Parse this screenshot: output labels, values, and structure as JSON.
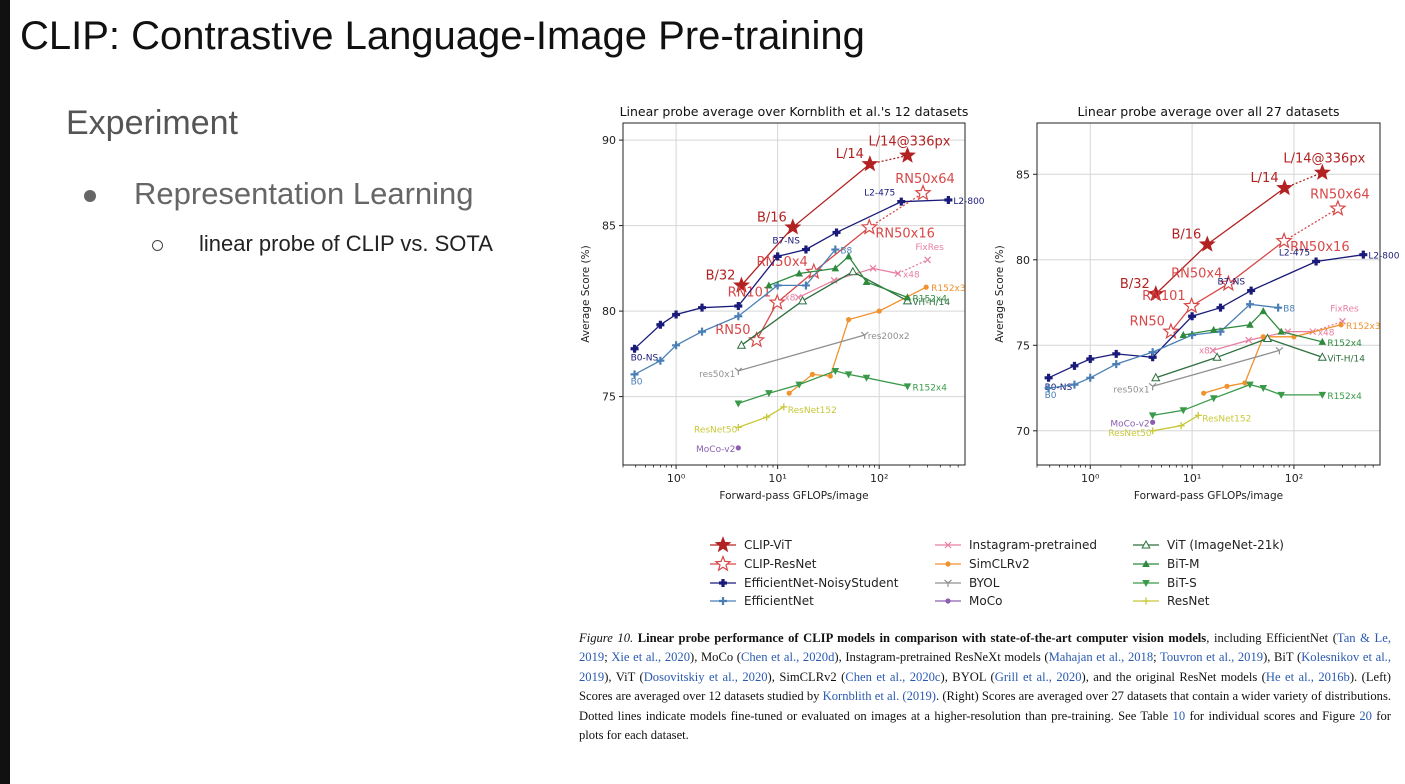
{
  "slide": {
    "title": "CLIP: Contrastive Language-Image Pre-training",
    "section": "Experiment",
    "bullet_1": "Representation Learning",
    "bullet_2": "linear probe of CLIP vs. SOTA"
  },
  "chart_data": [
    {
      "type": "line",
      "title": "Linear probe average over Kornblith et al.'s 12 datasets",
      "xlabel": "Forward-pass GFLOPs/image",
      "ylabel": "Average Score (%)",
      "xscale": "log",
      "xlim": [
        0.3,
        700
      ],
      "ylim": [
        71,
        91
      ],
      "xticks": [
        1,
        10,
        100
      ],
      "xticklabels": [
        "10⁰",
        "10¹",
        "10²"
      ],
      "yticks": [
        75,
        80,
        85,
        90
      ],
      "grid": true,
      "series": [
        {
          "name": "CLIP-ViT",
          "color": "#b22222",
          "marker": "star",
          "x": [
            4.4,
            14.1,
            81
          ],
          "y": [
            81.5,
            84.9,
            88.6
          ],
          "labels": [
            "B/32",
            "B/16",
            "L/14"
          ],
          "ft_x": [
            81,
            190
          ],
          "ft_y": [
            88.6,
            89.1
          ],
          "ft_label": "L/14@336px"
        },
        {
          "name": "CLIP-ResNet",
          "color": "#d84848",
          "marker": "star-open",
          "x": [
            6.2,
            9.9,
            22.7,
            80
          ],
          "y": [
            78.3,
            80.5,
            82.3,
            84.9
          ],
          "labels": [
            "RN50",
            "RN101",
            "RN50x4",
            "RN50x16"
          ],
          "ft_x": [
            80,
            270
          ],
          "ft_y": [
            84.9,
            86.9
          ],
          "ft_label": "RN50x64"
        },
        {
          "name": "EfficientNet-NoisyStudent",
          "color": "#1a1a7a",
          "marker": "plus-filled",
          "x": [
            0.39,
            0.7,
            1.0,
            1.8,
            4.1,
            10,
            19,
            38,
            165,
            480
          ],
          "y": [
            77.8,
            79.2,
            79.8,
            80.2,
            80.3,
            83.2,
            83.6,
            84.6,
            86.4,
            86.5
          ],
          "labels": [
            "B0-NS",
            "",
            "",
            "",
            "",
            "",
            "B7-NS",
            "",
            "L2-475",
            "L2-800"
          ]
        },
        {
          "name": "EfficientNet",
          "color": "#4a7fb5",
          "marker": "plus-open",
          "x": [
            0.39,
            0.7,
            1.0,
            1.8,
            4.1,
            10,
            19,
            37
          ],
          "y": [
            76.3,
            77.1,
            78.0,
            78.8,
            79.7,
            81.5,
            81.5,
            83.6
          ],
          "labels": [
            "B0",
            "",
            "",
            "",
            "",
            "",
            "",
            "B8"
          ]
        },
        {
          "name": "Instagram-pretrained",
          "color": "#e87fa0",
          "marker": "x",
          "x": [
            16,
            36,
            87,
            153
          ],
          "y": [
            80.8,
            81.8,
            82.5,
            82.2
          ],
          "labels": [
            "x8",
            "",
            "",
            "x48"
          ],
          "ft_x": [
            153,
            300
          ],
          "ft_y": [
            82.2,
            83
          ],
          "ft_label": "FixRes"
        },
        {
          "name": "SimCLRv2",
          "color": "#f0922d",
          "marker": "circle",
          "x": [
            13,
            22,
            33,
            50,
            100,
            290
          ],
          "y": [
            75.2,
            76.3,
            76.2,
            79.5,
            80,
            81.4
          ],
          "labels": [
            "",
            "",
            "",
            "",
            "",
            "R152x3"
          ]
        },
        {
          "name": "BYOL",
          "color": "#909090",
          "marker": "y",
          "x": [
            4.1,
            72
          ],
          "y": [
            76.5,
            78.6
          ],
          "labels": [
            "res50x1",
            "res200x2"
          ]
        },
        {
          "name": "MoCo",
          "color": "#8a5fb0",
          "marker": "circle",
          "x": [
            4.1
          ],
          "y": [
            72
          ],
          "labels": [
            "MoCo-v2"
          ]
        },
        {
          "name": "ViT (ImageNet-21k)",
          "color": "#2e6f3e",
          "marker": "triangle-open",
          "x": [
            4.4,
            17.6,
            55,
            190
          ],
          "y": [
            78,
            80.6,
            82.3,
            80.6
          ],
          "labels": [
            "",
            "",
            "",
            "ViT-H/14"
          ]
        },
        {
          "name": "BiT-M",
          "color": "#2e8b3e",
          "marker": "triangle",
          "x": [
            8.2,
            16.3,
            37,
            50,
            75,
            190
          ],
          "y": [
            81.5,
            82.2,
            82.5,
            83.2,
            81.7,
            80.8
          ],
          "labels": [
            "",
            "",
            "",
            "",
            "",
            "R152x4"
          ]
        },
        {
          "name": "BiT-S",
          "color": "#3a9a4a",
          "marker": "triangle-down",
          "x": [
            4.1,
            8.2,
            16.3,
            37,
            50,
            75,
            190
          ],
          "y": [
            74.6,
            75.2,
            75.7,
            76.5,
            76.3,
            76.1,
            75.6
          ],
          "labels": [
            "",
            "",
            "",
            "",
            "",
            "",
            "R152x4"
          ]
        },
        {
          "name": "ResNet",
          "color": "#c8c83a",
          "marker": "plus",
          "x": [
            4.1,
            7.8,
            11.5
          ],
          "y": [
            73.2,
            73.8,
            74.4
          ],
          "labels": [
            "ResNet50",
            "",
            "ResNet152"
          ]
        }
      ]
    },
    {
      "type": "line",
      "title": "Linear probe average over all 27 datasets",
      "xlabel": "Forward-pass GFLOPs/image",
      "ylabel": "Average Score (%)",
      "xscale": "log",
      "xlim": [
        0.3,
        700
      ],
      "ylim": [
        68,
        88
      ],
      "xticks": [
        1,
        10,
        100
      ],
      "xticklabels": [
        "10⁰",
        "10¹",
        "10²"
      ],
      "yticks": [
        70,
        75,
        80,
        85
      ],
      "grid": true,
      "series": [
        {
          "name": "CLIP-ViT",
          "color": "#b22222",
          "marker": "star",
          "x": [
            4.4,
            14.1,
            81
          ],
          "y": [
            78,
            80.9,
            84.2
          ],
          "labels": [
            "B/32",
            "B/16",
            "L/14"
          ],
          "ft_x": [
            81,
            190
          ],
          "ft_y": [
            84.2,
            85.1
          ],
          "ft_label": "L/14@336px"
        },
        {
          "name": "CLIP-ResNet",
          "color": "#d84848",
          "marker": "star-open",
          "x": [
            6.2,
            9.9,
            22.7,
            80
          ],
          "y": [
            75.8,
            77.3,
            78.6,
            81.1
          ],
          "labels": [
            "RN50",
            "RN101",
            "RN50x4",
            "RN50x16"
          ],
          "ft_x": [
            80,
            270
          ],
          "ft_y": [
            81.1,
            83
          ],
          "ft_label": "RN50x64"
        },
        {
          "name": "EfficientNet-NoisyStudent",
          "color": "#1a1a7a",
          "marker": "plus-filled",
          "x": [
            0.39,
            0.7,
            1.0,
            1.8,
            4.1,
            10,
            19,
            38,
            165,
            480
          ],
          "y": [
            73.1,
            73.8,
            74.2,
            74.5,
            74.3,
            76.7,
            77.2,
            78.2,
            79.9,
            80.3
          ],
          "labels": [
            "B0-NS",
            "",
            "",
            "",
            "",
            "",
            "",
            "B7-NS",
            "L2-475",
            "L2-800"
          ]
        },
        {
          "name": "EfficientNet",
          "color": "#4a7fb5",
          "marker": "plus-open",
          "x": [
            0.39,
            0.7,
            1.0,
            1.8,
            4.1,
            10,
            19,
            37,
            70
          ],
          "y": [
            72.5,
            72.7,
            73.1,
            73.9,
            74.6,
            75.6,
            75.8,
            77.4,
            77.2
          ],
          "labels": [
            "B0",
            "",
            "",
            "",
            "",
            "",
            "",
            "",
            "B8"
          ]
        },
        {
          "name": "Instagram-pretrained",
          "color": "#e87fa0",
          "marker": "x",
          "x": [
            16,
            36,
            87,
            153
          ],
          "y": [
            74.7,
            75.3,
            75.8,
            75.8
          ],
          "labels": [
            "x8",
            "",
            "",
            "x48"
          ],
          "ft_x": [
            153,
            300
          ],
          "ft_y": [
            75.8,
            76.4
          ],
          "ft_label": "FixRes"
        },
        {
          "name": "SimCLRv2",
          "color": "#f0922d",
          "marker": "circle",
          "x": [
            13,
            22,
            33,
            50,
            100,
            290
          ],
          "y": [
            72.2,
            72.6,
            72.8,
            75.5,
            75.5,
            76.2
          ],
          "labels": [
            "",
            "",
            "",
            "",
            "",
            "R152x3"
          ]
        },
        {
          "name": "BYOL",
          "color": "#909090",
          "marker": "y",
          "x": [
            4.1,
            72
          ],
          "y": [
            72.6,
            74.7
          ],
          "labels": [
            "res50x1",
            ""
          ]
        },
        {
          "name": "MoCo",
          "color": "#8a5fb0",
          "marker": "circle",
          "x": [
            4.1
          ],
          "y": [
            70.5
          ],
          "labels": [
            "MoCo-v2"
          ]
        },
        {
          "name": "ViT (ImageNet-21k)",
          "color": "#2e6f3e",
          "marker": "triangle-open",
          "x": [
            4.4,
            17.6,
            55,
            190
          ],
          "y": [
            73.1,
            74.3,
            75.4,
            74.3
          ],
          "labels": [
            "",
            "",
            "",
            "ViT-H/14"
          ]
        },
        {
          "name": "BiT-M",
          "color": "#2e8b3e",
          "marker": "triangle",
          "x": [
            8.2,
            16.3,
            37,
            50,
            75,
            190
          ],
          "y": [
            75.6,
            75.9,
            76.2,
            77,
            75.8,
            75.2
          ],
          "labels": [
            "",
            "",
            "",
            "",
            "",
            "R152x4"
          ]
        },
        {
          "name": "BiT-S",
          "color": "#3a9a4a",
          "marker": "triangle-down",
          "x": [
            4.1,
            8.2,
            16.3,
            37,
            50,
            75,
            190
          ],
          "y": [
            70.9,
            71.2,
            71.9,
            72.7,
            72.5,
            72.1,
            72.1
          ],
          "labels": [
            "",
            "",
            "",
            "",
            "",
            "",
            "R152x4"
          ]
        },
        {
          "name": "ResNet",
          "color": "#c8c83a",
          "marker": "plus",
          "x": [
            4.1,
            7.8,
            11.5
          ],
          "y": [
            70,
            70.3,
            70.9
          ],
          "labels": [
            "ResNet50",
            "",
            "ResNet152"
          ]
        }
      ]
    }
  ],
  "legend": {
    "placement": "bottom",
    "items": [
      "CLIP-ViT",
      "CLIP-ResNet",
      "EfficientNet-NoisyStudent",
      "EfficientNet",
      "Instagram-pretrained",
      "SimCLRv2",
      "BYOL",
      "MoCo",
      "ViT (ImageNet-21k)",
      "BiT-M",
      "BiT-S",
      "ResNet"
    ]
  },
  "caption": {
    "figure_label": "Figure 10.",
    "bold_text": "Linear probe performance of CLIP models in comparison with state-of-the-art computer vision models",
    "segments": [
      {
        "t": ", including EfficientNet ("
      },
      {
        "t": "Tan & Le, 2019",
        "c": 1
      },
      {
        "t": "; "
      },
      {
        "t": "Xie et al., 2020",
        "c": 1
      },
      {
        "t": "), MoCo ("
      },
      {
        "t": "Chen et al., 2020d",
        "c": 1
      },
      {
        "t": "), Instagram-pretrained ResNeXt models ("
      },
      {
        "t": "Mahajan et al., 2018",
        "c": 1
      },
      {
        "t": "; "
      },
      {
        "t": "Touvron et al., 2019",
        "c": 1
      },
      {
        "t": "), BiT ("
      },
      {
        "t": "Kolesnikov et al., 2019",
        "c": 1
      },
      {
        "t": "), ViT ("
      },
      {
        "t": "Dosovitskiy et al., 2020",
        "c": 1
      },
      {
        "t": "), SimCLRv2 ("
      },
      {
        "t": "Chen et al., 2020c",
        "c": 1
      },
      {
        "t": "), BYOL ("
      },
      {
        "t": "Grill et al., 2020",
        "c": 1
      },
      {
        "t": "), and the original ResNet models ("
      },
      {
        "t": "He et al., 2016b",
        "c": 1
      },
      {
        "t": "). (Left) Scores are averaged over 12 datasets studied by "
      },
      {
        "t": "Kornblith et al. (2019)",
        "c": 1
      },
      {
        "t": ". (Right) Scores are averaged over 27 datasets that contain a wider variety of distributions. Dotted lines indicate models fine-tuned or evaluated on images at a higher-resolution than pre-training. See Table "
      },
      {
        "t": "10",
        "c": 1
      },
      {
        "t": " for individual scores and Figure "
      },
      {
        "t": "20",
        "c": 1
      },
      {
        "t": " for plots for each dataset."
      }
    ]
  }
}
